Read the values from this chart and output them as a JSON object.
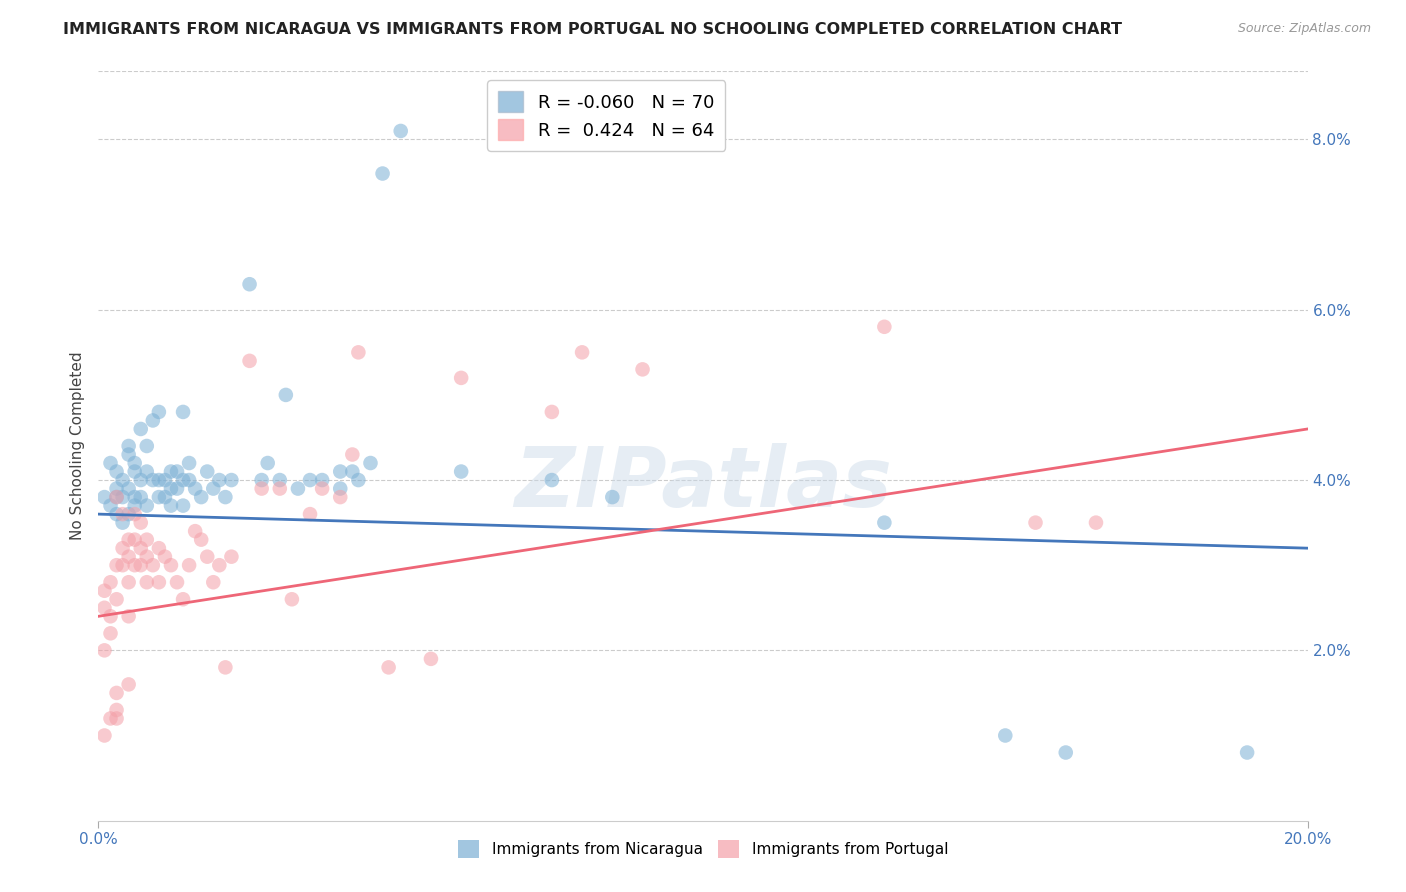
{
  "title": "IMMIGRANTS FROM NICARAGUA VS IMMIGRANTS FROM PORTUGAL NO SCHOOLING COMPLETED CORRELATION CHART",
  "source": "Source: ZipAtlas.com",
  "ylabel": "No Schooling Completed",
  "xlim": [
    0.0,
    0.2
  ],
  "ylim": [
    -0.001,
    0.092
  ],
  "plot_ylim": [
    0.0,
    0.088
  ],
  "xticks": [
    0.0,
    0.2
  ],
  "xtick_labels": [
    "0.0%",
    "20.0%"
  ],
  "yticks": [
    0.02,
    0.04,
    0.06,
    0.08
  ],
  "ytick_labels": [
    "2.0%",
    "4.0%",
    "6.0%",
    "8.0%"
  ],
  "nicaragua_color": "#7BAFD4",
  "portugal_color": "#F4A0A8",
  "trend_nicaragua_color": "#4477BB",
  "trend_portugal_color": "#EE6677",
  "legend_r_nicaragua": "-0.060",
  "legend_n_nicaragua": "70",
  "legend_r_portugal": "0.424",
  "legend_n_portugal": "64",
  "watermark": "ZIPatlas",
  "nicaragua_trend_start": 0.036,
  "nicaragua_trend_end": 0.032,
  "portugal_trend_start": 0.024,
  "portugal_trend_end": 0.046,
  "nicaragua_points": [
    [
      0.001,
      0.038
    ],
    [
      0.002,
      0.037
    ],
    [
      0.002,
      0.042
    ],
    [
      0.003,
      0.038
    ],
    [
      0.003,
      0.041
    ],
    [
      0.003,
      0.039
    ],
    [
      0.003,
      0.036
    ],
    [
      0.004,
      0.038
    ],
    [
      0.004,
      0.04
    ],
    [
      0.004,
      0.035
    ],
    [
      0.005,
      0.036
    ],
    [
      0.005,
      0.039
    ],
    [
      0.005,
      0.043
    ],
    [
      0.005,
      0.044
    ],
    [
      0.006,
      0.042
    ],
    [
      0.006,
      0.041
    ],
    [
      0.006,
      0.038
    ],
    [
      0.006,
      0.037
    ],
    [
      0.007,
      0.046
    ],
    [
      0.007,
      0.04
    ],
    [
      0.007,
      0.038
    ],
    [
      0.008,
      0.044
    ],
    [
      0.008,
      0.041
    ],
    [
      0.008,
      0.037
    ],
    [
      0.009,
      0.04
    ],
    [
      0.009,
      0.047
    ],
    [
      0.01,
      0.048
    ],
    [
      0.01,
      0.04
    ],
    [
      0.01,
      0.038
    ],
    [
      0.011,
      0.04
    ],
    [
      0.011,
      0.038
    ],
    [
      0.012,
      0.041
    ],
    [
      0.012,
      0.039
    ],
    [
      0.012,
      0.037
    ],
    [
      0.013,
      0.041
    ],
    [
      0.013,
      0.039
    ],
    [
      0.014,
      0.048
    ],
    [
      0.014,
      0.04
    ],
    [
      0.014,
      0.037
    ],
    [
      0.015,
      0.042
    ],
    [
      0.015,
      0.04
    ],
    [
      0.016,
      0.039
    ],
    [
      0.017,
      0.038
    ],
    [
      0.018,
      0.041
    ],
    [
      0.019,
      0.039
    ],
    [
      0.02,
      0.04
    ],
    [
      0.021,
      0.038
    ],
    [
      0.022,
      0.04
    ],
    [
      0.025,
      0.063
    ],
    [
      0.027,
      0.04
    ],
    [
      0.028,
      0.042
    ],
    [
      0.03,
      0.04
    ],
    [
      0.031,
      0.05
    ],
    [
      0.033,
      0.039
    ],
    [
      0.035,
      0.04
    ],
    [
      0.037,
      0.04
    ],
    [
      0.04,
      0.041
    ],
    [
      0.04,
      0.039
    ],
    [
      0.042,
      0.041
    ],
    [
      0.043,
      0.04
    ],
    [
      0.045,
      0.042
    ],
    [
      0.047,
      0.076
    ],
    [
      0.05,
      0.081
    ],
    [
      0.06,
      0.041
    ],
    [
      0.075,
      0.04
    ],
    [
      0.085,
      0.038
    ],
    [
      0.13,
      0.035
    ],
    [
      0.15,
      0.01
    ],
    [
      0.16,
      0.008
    ],
    [
      0.19,
      0.008
    ]
  ],
  "portugal_points": [
    [
      0.001,
      0.025
    ],
    [
      0.001,
      0.02
    ],
    [
      0.001,
      0.027
    ],
    [
      0.001,
      0.01
    ],
    [
      0.002,
      0.028
    ],
    [
      0.002,
      0.024
    ],
    [
      0.002,
      0.012
    ],
    [
      0.002,
      0.022
    ],
    [
      0.003,
      0.038
    ],
    [
      0.003,
      0.015
    ],
    [
      0.003,
      0.012
    ],
    [
      0.003,
      0.03
    ],
    [
      0.003,
      0.026
    ],
    [
      0.003,
      0.013
    ],
    [
      0.004,
      0.036
    ],
    [
      0.004,
      0.032
    ],
    [
      0.004,
      0.03
    ],
    [
      0.005,
      0.033
    ],
    [
      0.005,
      0.031
    ],
    [
      0.005,
      0.028
    ],
    [
      0.005,
      0.016
    ],
    [
      0.005,
      0.024
    ],
    [
      0.006,
      0.036
    ],
    [
      0.006,
      0.033
    ],
    [
      0.006,
      0.03
    ],
    [
      0.007,
      0.035
    ],
    [
      0.007,
      0.032
    ],
    [
      0.007,
      0.03
    ],
    [
      0.008,
      0.033
    ],
    [
      0.008,
      0.031
    ],
    [
      0.008,
      0.028
    ],
    [
      0.009,
      0.03
    ],
    [
      0.01,
      0.032
    ],
    [
      0.01,
      0.028
    ],
    [
      0.011,
      0.031
    ],
    [
      0.012,
      0.03
    ],
    [
      0.013,
      0.028
    ],
    [
      0.014,
      0.026
    ],
    [
      0.015,
      0.03
    ],
    [
      0.016,
      0.034
    ],
    [
      0.017,
      0.033
    ],
    [
      0.018,
      0.031
    ],
    [
      0.019,
      0.028
    ],
    [
      0.02,
      0.03
    ],
    [
      0.021,
      0.018
    ],
    [
      0.022,
      0.031
    ],
    [
      0.025,
      0.054
    ],
    [
      0.027,
      0.039
    ],
    [
      0.03,
      0.039
    ],
    [
      0.032,
      0.026
    ],
    [
      0.035,
      0.036
    ],
    [
      0.037,
      0.039
    ],
    [
      0.04,
      0.038
    ],
    [
      0.042,
      0.043
    ],
    [
      0.043,
      0.055
    ],
    [
      0.048,
      0.018
    ],
    [
      0.055,
      0.019
    ],
    [
      0.06,
      0.052
    ],
    [
      0.075,
      0.048
    ],
    [
      0.08,
      0.055
    ],
    [
      0.09,
      0.053
    ],
    [
      0.13,
      0.058
    ],
    [
      0.155,
      0.035
    ],
    [
      0.165,
      0.035
    ]
  ]
}
